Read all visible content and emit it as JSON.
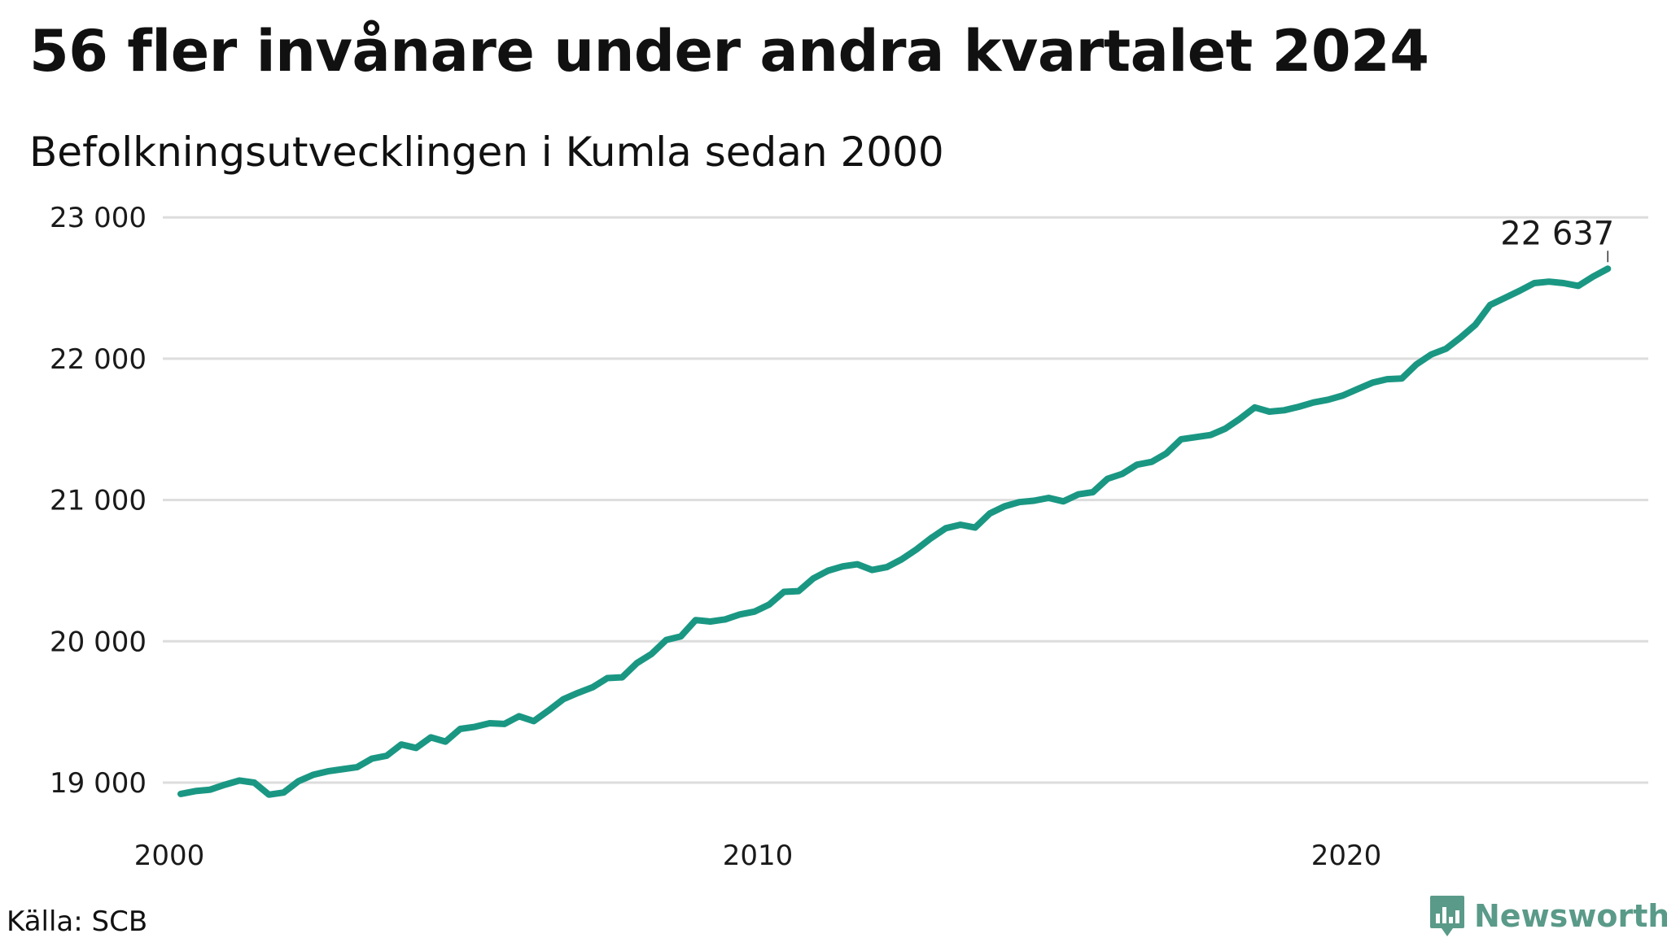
{
  "header": {
    "title": "56 fler invånare under andra kvartalet 2024",
    "subtitle": "Befolkningsutvecklingen i Kumla sedan 2000"
  },
  "footer": {
    "source": "Källa: SCB",
    "brand": "Newsworthy",
    "brand_icon": "newsworthy-logo-icon"
  },
  "colors": {
    "line": "#1a9783",
    "grid": "#dddddd",
    "text": "#111111",
    "brand": "#5a9a88"
  },
  "chart_data": {
    "type": "line",
    "title": "56 fler invånare under andra kvartalet 2024",
    "subtitle": "Befolkningsutvecklingen i Kumla sedan 2000",
    "xlabel": "",
    "ylabel": "",
    "grid": true,
    "ylim": [
      18850,
      23050
    ],
    "xlim": [
      2000,
      2024.5
    ],
    "y_ticks": [
      19000,
      20000,
      21000,
      22000,
      23000
    ],
    "y_tick_labels": [
      "19 000",
      "20 000",
      "21 000",
      "22 000",
      "23 000"
    ],
    "x_ticks": [
      2000,
      2010,
      2020
    ],
    "x_tick_labels": [
      "2000",
      "2010",
      "2020"
    ],
    "end_label": "22 637",
    "x_frequency": "quarterly",
    "x_start": "2000 Q1",
    "series": [
      {
        "values": [
          18920,
          18940,
          18950,
          18985,
          19015,
          19000,
          18915,
          18930,
          19010,
          19055,
          19080,
          19095,
          19110,
          19170,
          19190,
          19270,
          19245,
          19320,
          19290,
          19380,
          19395,
          19420,
          19415,
          19470,
          19435,
          19510,
          19590,
          19635,
          19675,
          19740,
          19745,
          19845,
          19910,
          20010,
          20035,
          20150,
          20140,
          20155,
          20190,
          20210,
          20260,
          20350,
          20355,
          20445,
          20500,
          20530,
          20545,
          20505,
          20525,
          20580,
          20650,
          20730,
          20800,
          20825,
          20805,
          20905,
          20955,
          20985,
          20995,
          21015,
          20990,
          21040,
          21055,
          21150,
          21185,
          21250,
          21270,
          21330,
          21430,
          21445,
          21460,
          21505,
          21575,
          21655,
          21625,
          21635,
          21660,
          21690,
          21710,
          21740,
          21785,
          21830,
          21855,
          21860,
          21960,
          22030,
          22070,
          22150,
          22240,
          22380,
          22430,
          22480,
          22535,
          22545,
          22535,
          22515,
          22581,
          22637
        ]
      }
    ]
  }
}
